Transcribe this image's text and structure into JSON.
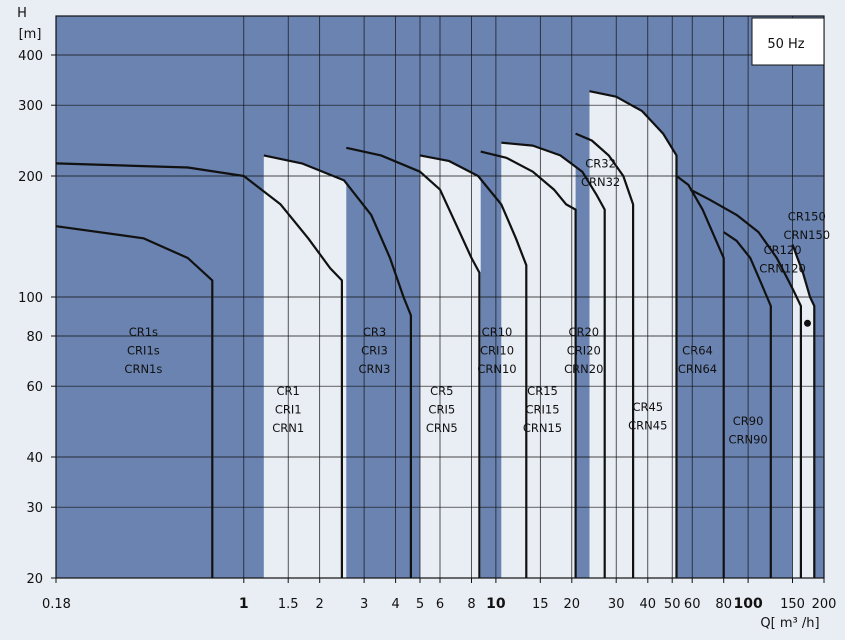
{
  "chart_data": {
    "type": "area",
    "frequency_label": "50 Hz",
    "xlabel": "Q[  m³ /h]",
    "ylabel_top": "H",
    "ylabel_unit": "[m]",
    "x_scale": "log",
    "y_scale": "log",
    "xlim": [
      0.18,
      200
    ],
    "ylim": [
      20,
      500
    ],
    "grid": true,
    "x_ticks": [
      {
        "value": 0.18,
        "label": "0.18",
        "bold": false
      },
      {
        "value": 1,
        "label": "1",
        "bold": true
      },
      {
        "value": 1.5,
        "label": "1.5",
        "bold": false
      },
      {
        "value": 2,
        "label": "2",
        "bold": false
      },
      {
        "value": 3,
        "label": "3",
        "bold": false
      },
      {
        "value": 4,
        "label": "4",
        "bold": false
      },
      {
        "value": 5,
        "label": "5",
        "bold": false
      },
      {
        "value": 6,
        "label": "6",
        "bold": false
      },
      {
        "value": 8,
        "label": "8",
        "bold": false
      },
      {
        "value": 10,
        "label": "10",
        "bold": true
      },
      {
        "value": 15,
        "label": "15",
        "bold": false
      },
      {
        "value": 20,
        "label": "20",
        "bold": false
      },
      {
        "value": 30,
        "label": "30",
        "bold": false
      },
      {
        "value": 40,
        "label": "40",
        "bold": false
      },
      {
        "value": 50,
        "label": "50",
        "bold": false
      },
      {
        "value": 60,
        "label": "60",
        "bold": false
      },
      {
        "value": 80,
        "label": "80",
        "bold": false
      },
      {
        "value": 100,
        "label": "100",
        "bold": true
      },
      {
        "value": 150,
        "label": "150",
        "bold": false
      },
      {
        "value": 200,
        "label": "200",
        "bold": false
      }
    ],
    "y_ticks": [
      {
        "value": 20,
        "label": "20"
      },
      {
        "value": 30,
        "label": "30"
      },
      {
        "value": 40,
        "label": "40"
      },
      {
        "value": 60,
        "label": "60"
      },
      {
        "value": 80,
        "label": "80"
      },
      {
        "value": 100,
        "label": "100"
      },
      {
        "value": 200,
        "label": "200"
      },
      {
        "value": 300,
        "label": "300"
      },
      {
        "value": 400,
        "label": "400"
      }
    ],
    "series": [
      {
        "name": "CR1s",
        "labels": [
          "CR1s",
          "CRI1s",
          "CRN1s"
        ],
        "fill": "#e9edf4",
        "outline": [
          [
            0.18,
            150
          ],
          [
            0.4,
            140
          ],
          [
            0.6,
            125
          ],
          [
            0.75,
            110
          ],
          [
            0.75,
            20
          ]
        ],
        "label_at": [
          0.4,
          80
        ]
      },
      {
        "name": "CR1",
        "labels": [
          "CR1",
          "CRI1",
          "CRN1"
        ],
        "fill": "#6a83b0",
        "outline": [
          [
            0.18,
            215
          ],
          [
            0.6,
            210
          ],
          [
            1.0,
            200
          ],
          [
            1.4,
            170
          ],
          [
            1.8,
            140
          ],
          [
            2.2,
            118
          ],
          [
            2.45,
            110
          ],
          [
            2.45,
            20
          ]
        ],
        "label_at": [
          1.5,
          57
        ]
      },
      {
        "name": "CR3",
        "labels": [
          "CR3",
          "CRI3",
          "CRN3"
        ],
        "fill": "#e9edf4",
        "outline": [
          [
            1.2,
            225
          ],
          [
            1.7,
            215
          ],
          [
            2.5,
            195
          ],
          [
            3.2,
            160
          ],
          [
            3.8,
            125
          ],
          [
            4.3,
            100
          ],
          [
            4.6,
            90
          ],
          [
            4.6,
            20
          ]
        ],
        "label_at": [
          3.3,
          80
        ]
      },
      {
        "name": "CR5",
        "labels": [
          "CR5",
          "CRI5",
          "CRN5"
        ],
        "fill": "#6a83b0",
        "outline": [
          [
            2.55,
            235
          ],
          [
            3.5,
            225
          ],
          [
            5,
            205
          ],
          [
            6,
            185
          ],
          [
            7,
            150
          ],
          [
            8,
            125
          ],
          [
            8.6,
            115
          ],
          [
            8.6,
            20
          ]
        ],
        "label_at": [
          6.1,
          57
        ]
      },
      {
        "name": "CR10",
        "labels": [
          "CR10",
          "CRI10",
          "CRN10"
        ],
        "fill": "#e9edf4",
        "outline": [
          [
            5,
            225
          ],
          [
            6.5,
            218
          ],
          [
            8.5,
            200
          ],
          [
            10.5,
            170
          ],
          [
            12,
            140
          ],
          [
            13.2,
            120
          ],
          [
            13.2,
            20
          ]
        ],
        "label_at": [
          10.1,
          80
        ]
      },
      {
        "name": "CR15",
        "labels": [
          "CR15",
          "CRI15",
          "CRN15"
        ],
        "fill": "#6a83b0",
        "outline": [
          [
            8.7,
            230
          ],
          [
            11,
            222
          ],
          [
            14,
            205
          ],
          [
            17,
            185
          ],
          [
            19,
            170
          ],
          [
            20.7,
            165
          ],
          [
            20.7,
            20
          ]
        ],
        "label_at": [
          15.3,
          57
        ]
      },
      {
        "name": "CR20",
        "labels": [
          "CR20",
          "CRI20",
          "CRN20"
        ],
        "fill": "#e9edf4",
        "outline": [
          [
            10.5,
            242
          ],
          [
            14,
            238
          ],
          [
            18,
            225
          ],
          [
            22,
            205
          ],
          [
            25,
            180
          ],
          [
            27,
            165
          ],
          [
            27,
            20
          ]
        ],
        "label_at": [
          22.3,
          80
        ]
      },
      {
        "name": "CR32",
        "labels": [
          "CR32",
          "CRN32"
        ],
        "fill": "#6a83b0",
        "outline": [
          [
            20.7,
            255
          ],
          [
            24,
            245
          ],
          [
            28,
            225
          ],
          [
            32,
            200
          ],
          [
            35,
            170
          ],
          [
            35,
            20
          ]
        ],
        "label_at": [
          26,
          210
        ]
      },
      {
        "name": "CR45",
        "labels": [
          "CR45",
          "CRN45"
        ],
        "fill": "#e9edf4",
        "outline": [
          [
            23.5,
            325
          ],
          [
            30,
            315
          ],
          [
            38,
            290
          ],
          [
            46,
            255
          ],
          [
            52,
            225
          ],
          [
            52,
            20
          ]
        ],
        "label_at": [
          40,
          52
        ]
      },
      {
        "name": "CR64",
        "labels": [
          "CR64",
          "CRN64"
        ],
        "fill": "#6a83b0",
        "outline": [
          [
            52,
            200
          ],
          [
            58,
            190
          ],
          [
            66,
            165
          ],
          [
            74,
            140
          ],
          [
            80,
            125
          ],
          [
            80,
            20
          ]
        ],
        "label_at": [
          63,
          72
        ]
      },
      {
        "name": "CR90",
        "labels": [
          "CR90",
          "CRN90"
        ],
        "fill": "#e9edf4",
        "outline": [
          [
            80,
            145
          ],
          [
            90,
            138
          ],
          [
            102,
            125
          ],
          [
            115,
            105
          ],
          [
            123,
            95
          ],
          [
            123,
            20
          ]
        ],
        "label_at": [
          100,
          48
        ]
      },
      {
        "name": "CR120",
        "labels": [
          "CR120",
          "CRN120"
        ],
        "fill": "#6a83b0",
        "outline": [
          [
            59,
            185
          ],
          [
            70,
            175
          ],
          [
            90,
            160
          ],
          [
            110,
            145
          ],
          [
            130,
            125
          ],
          [
            150,
            105
          ],
          [
            162,
            95
          ],
          [
            162,
            20
          ]
        ],
        "label_at": [
          137,
          128
        ]
      },
      {
        "name": "CR150",
        "labels": [
          "CR150",
          "CRN150"
        ],
        "fill": "#e9edf4",
        "outline": [
          [
            150,
            135
          ],
          [
            165,
            115
          ],
          [
            176,
            100
          ],
          [
            183,
            95
          ],
          [
            183,
            20
          ]
        ],
        "label_at": [
          171,
          155
        ],
        "marker": [
          172,
          86
        ]
      }
    ]
  }
}
